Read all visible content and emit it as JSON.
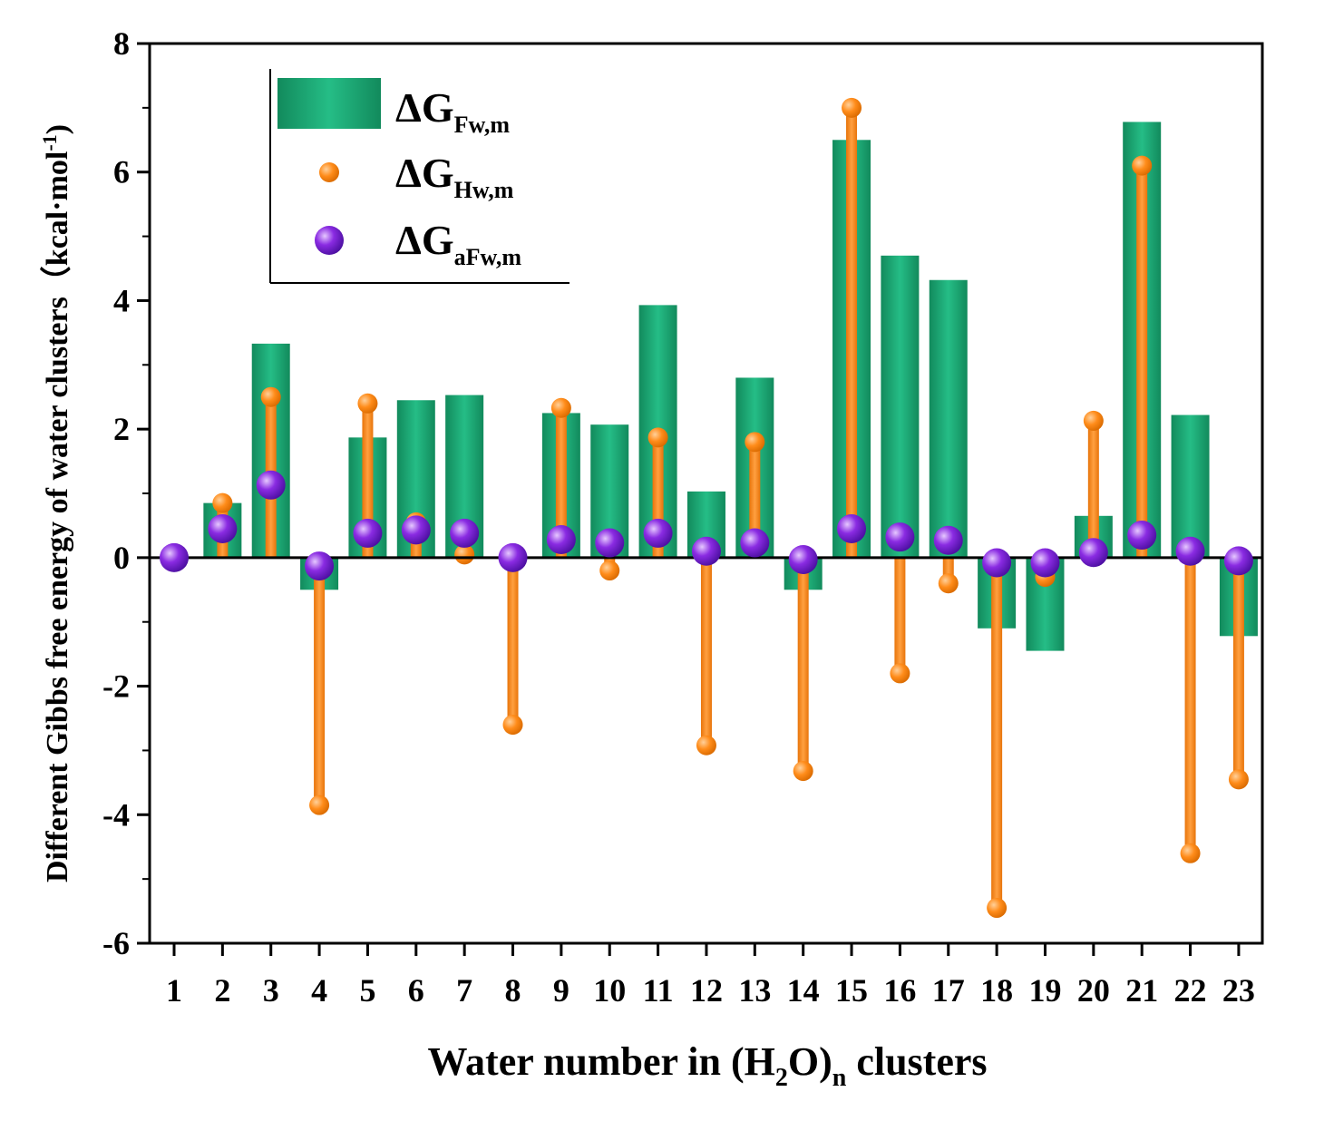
{
  "chart_data": {
    "type": "bar",
    "x_label_parts": {
      "prefix": "Water number in (H",
      "sub1": "2",
      "mid": "O)",
      "sub2": "n",
      "suffix": "  clusters"
    },
    "y_label_parts": {
      "main": "Different Gibbs free energy of water clusters（kcal·mol",
      "sup": "-1",
      "close": ")"
    },
    "ylim": [
      -6,
      8
    ],
    "y_ticks": [
      "8",
      "6",
      "4",
      "2",
      "0",
      "-2",
      "-4",
      "-6"
    ],
    "y_tick_values": [
      8,
      6,
      4,
      2,
      0,
      -2,
      -4,
      -6
    ],
    "categories": [
      "1",
      "2",
      "3",
      "4",
      "5",
      "6",
      "7",
      "8",
      "9",
      "10",
      "11",
      "12",
      "13",
      "14",
      "15",
      "16",
      "17",
      "18",
      "19",
      "20",
      "21",
      "22",
      "23"
    ],
    "series": [
      {
        "name": "ΔG_Fw,m",
        "legend_main": "ΔG",
        "legend_sub": "Fw,m",
        "kind": "bar",
        "color": "#1aa874",
        "values": [
          0,
          0.85,
          3.33,
          -0.5,
          1.87,
          2.45,
          2.53,
          0,
          2.25,
          2.07,
          3.93,
          1.03,
          2.8,
          -0.5,
          6.5,
          4.7,
          4.32,
          -1.1,
          -1.45,
          0.65,
          6.78,
          2.22,
          -1.22
        ]
      },
      {
        "name": "ΔG_Hw,m",
        "legend_main": "ΔG",
        "legend_sub": "Hw,m",
        "kind": "stem",
        "color": "#ff8c1a",
        "values": [
          0,
          0.85,
          2.5,
          -3.85,
          2.4,
          0.55,
          0.05,
          -2.6,
          2.33,
          -0.2,
          1.87,
          -2.92,
          1.8,
          -3.32,
          7.0,
          -1.8,
          -0.4,
          -5.45,
          -0.3,
          2.13,
          6.1,
          -4.6,
          -3.45
        ]
      },
      {
        "name": "ΔG_aFw,m",
        "legend_main": "ΔG",
        "legend_sub": "aFw,m",
        "kind": "point",
        "color": "#7a1fd6",
        "values": [
          0,
          0.45,
          1.13,
          -0.13,
          0.38,
          0.43,
          0.38,
          0,
          0.28,
          0.23,
          0.38,
          0.1,
          0.23,
          -0.03,
          0.45,
          0.32,
          0.27,
          -0.08,
          -0.08,
          0.08,
          0.35,
          0.1,
          -0.05
        ]
      }
    ],
    "legend_position": "top-left"
  }
}
